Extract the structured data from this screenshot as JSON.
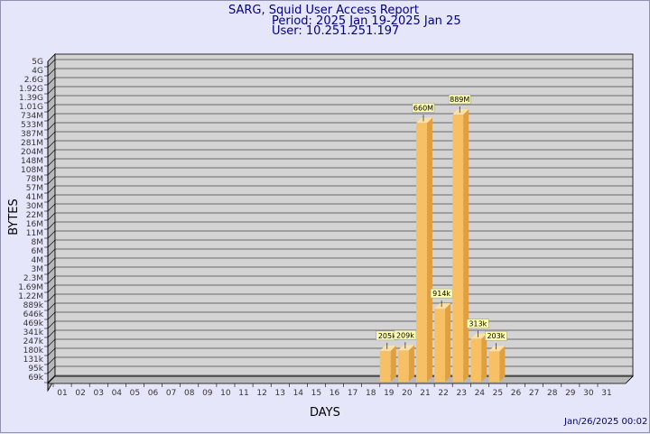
{
  "header": {
    "title": "SARG, Squid User Access Report",
    "period": "Period: 2025 Jan 19-2025 Jan 25",
    "user": "User: 10.251.251.197"
  },
  "footer": {
    "timestamp": "Jan/26/2025 00:02"
  },
  "colors": {
    "background": "#e6e6fa",
    "plot": "#d3d3d3",
    "bar_front": "#f7c065",
    "bar_side": "#e0a040",
    "bar_top": "#fde0a8",
    "label_bg": "#ffffb0",
    "title": "#000080"
  },
  "chart_data": {
    "type": "bar",
    "title": "SARG, Squid User Access Report",
    "xlabel": "DAYS",
    "ylabel": "BYTES",
    "y_scale": "log",
    "grid": true,
    "y_ticks": [
      "69k",
      "95k",
      "131k",
      "180k",
      "247k",
      "341k",
      "469k",
      "646k",
      "889k",
      "1.22M",
      "1.69M",
      "2.3M",
      "3M",
      "4M",
      "6M",
      "8M",
      "11M",
      "16M",
      "22M",
      "30M",
      "41M",
      "57M",
      "78M",
      "108M",
      "148M",
      "204M",
      "281M",
      "387M",
      "533M",
      "734M",
      "1.01G",
      "1.39G",
      "1.92G",
      "2.6G",
      "4G",
      "5G"
    ],
    "categories": [
      "01",
      "02",
      "03",
      "04",
      "05",
      "06",
      "07",
      "08",
      "09",
      "10",
      "11",
      "12",
      "13",
      "14",
      "15",
      "16",
      "17",
      "18",
      "19",
      "20",
      "21",
      "22",
      "23",
      "24",
      "25",
      "26",
      "27",
      "28",
      "29",
      "30",
      "31"
    ],
    "bars": [
      {
        "day": "19",
        "value": 205000,
        "label": "205k"
      },
      {
        "day": "20",
        "value": 209000,
        "label": "209k"
      },
      {
        "day": "21",
        "value": 660000000,
        "label": "660M"
      },
      {
        "day": "22",
        "value": 914000,
        "label": "914k"
      },
      {
        "day": "23",
        "value": 889000000,
        "label": "889M"
      },
      {
        "day": "24",
        "value": 313000,
        "label": "313k"
      },
      {
        "day": "25",
        "value": 203000,
        "label": "203k"
      }
    ]
  }
}
